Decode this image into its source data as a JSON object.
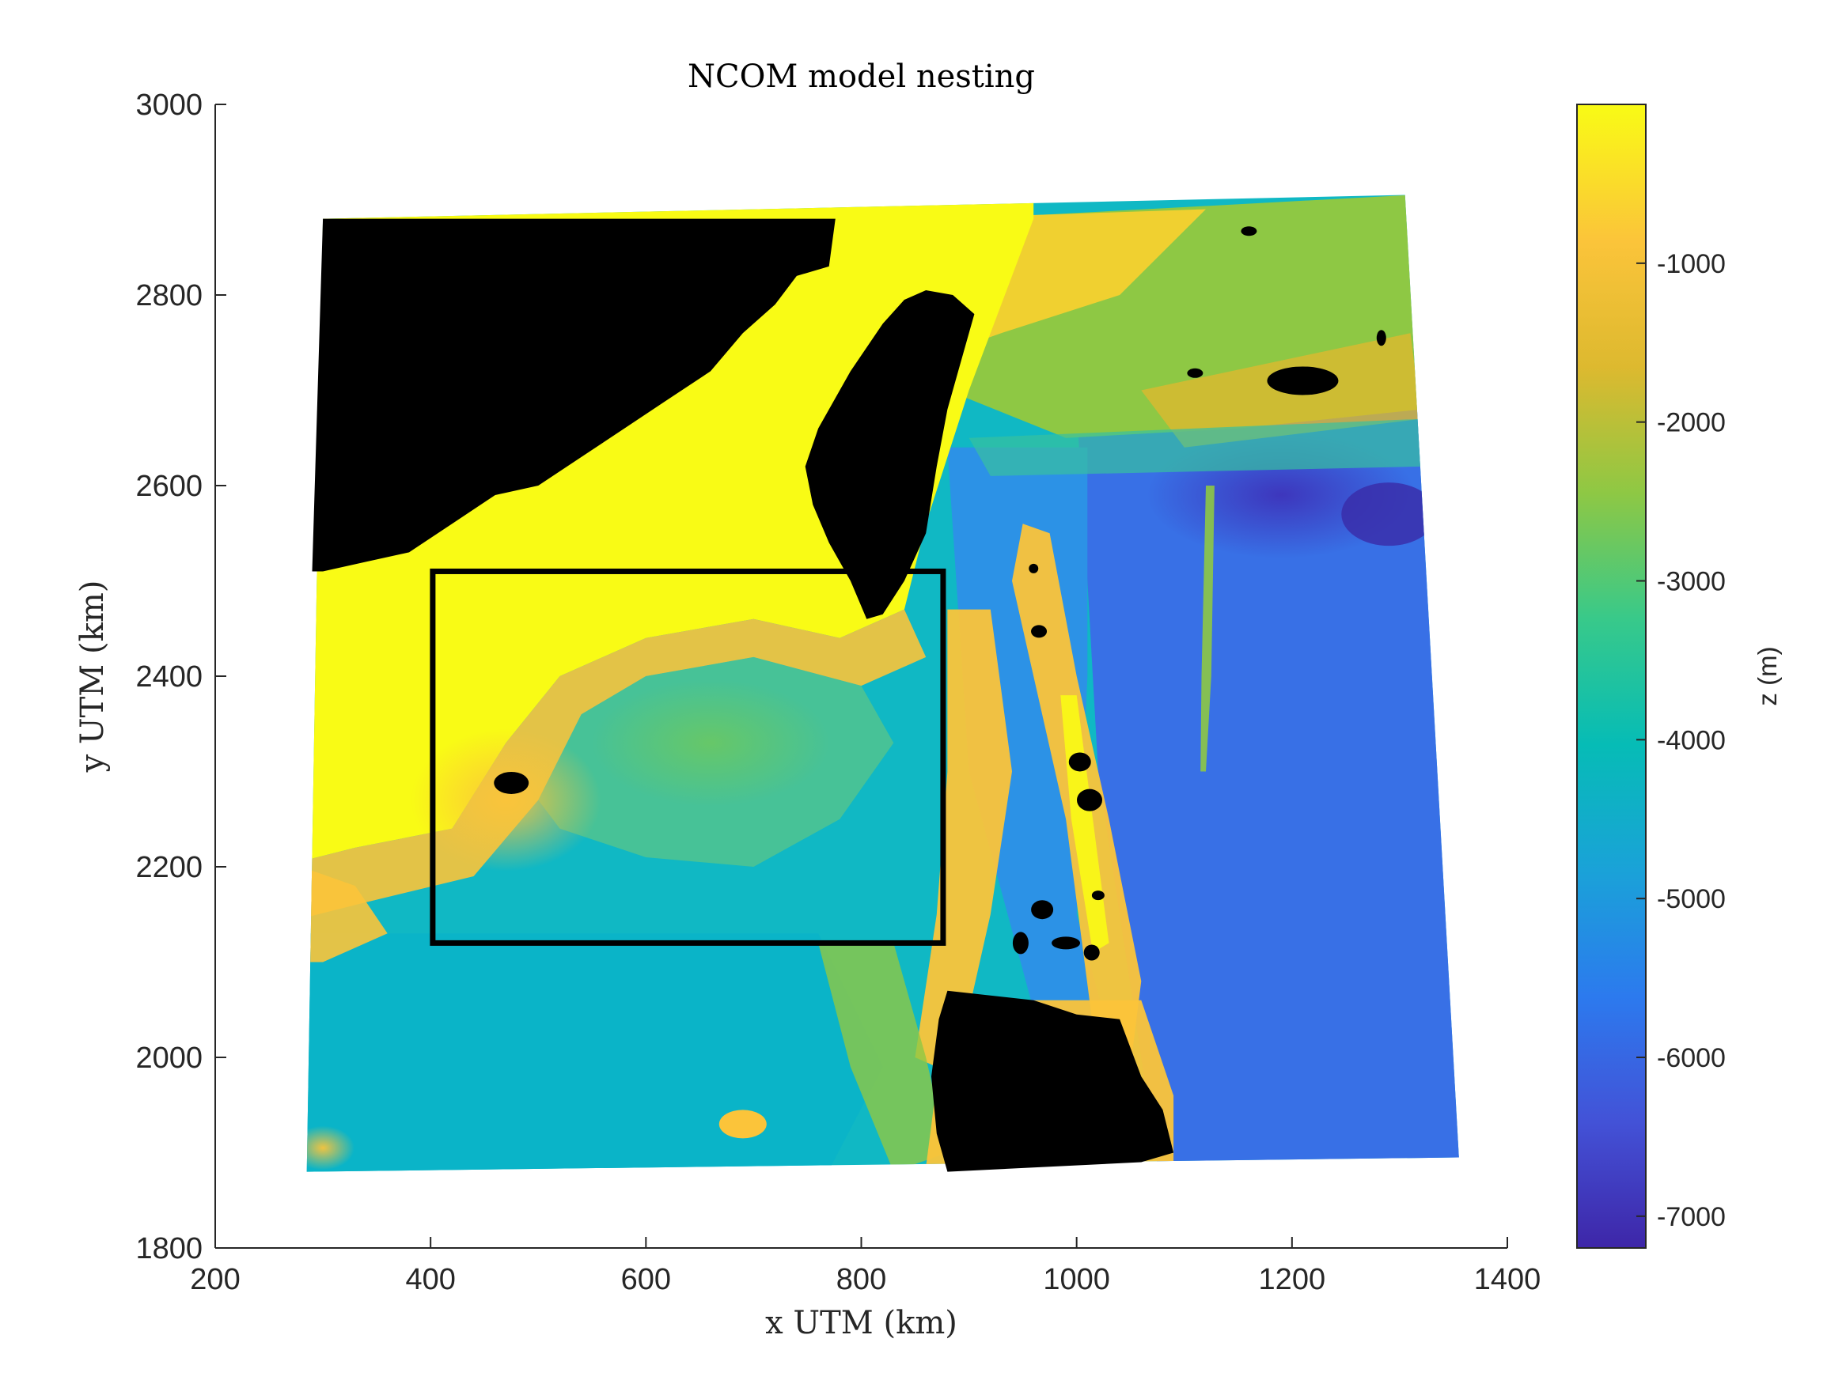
{
  "chart_data": {
    "type": "heatmap",
    "title": "NCOM model nesting",
    "xlabel": "x UTM (km)",
    "ylabel": "y UTM (km)",
    "xlim": [
      200,
      1400
    ],
    "ylim": [
      1800,
      3000
    ],
    "xticks": [
      200,
      400,
      600,
      800,
      1000,
      1200,
      1400
    ],
    "yticks": [
      1800,
      2000,
      2200,
      2400,
      2600,
      2800,
      3000
    ],
    "grid": false,
    "colorbar": {
      "label": "z (m)",
      "colormap": "parula",
      "range": [
        -7200,
        0
      ],
      "ticks": [
        -1000,
        -2000,
        -3000,
        -4000,
        -5000,
        -6000,
        -7000
      ]
    },
    "domain_corners_km": [
      [
        300,
        2880
      ],
      [
        1305,
        2905
      ],
      [
        1355,
        1895
      ],
      [
        285,
        1880
      ]
    ],
    "nested_box_km": {
      "x": [
        402,
        876
      ],
      "y": [
        2120,
        2510
      ]
    },
    "land_mask_color": "#000000",
    "colormap_stops": [
      "#3e26a8",
      "#4352d7",
      "#2c7aee",
      "#1aa2d8",
      "#06bcb6",
      "#38c98a",
      "#8ec844",
      "#ddb92f",
      "#fbc43a",
      "#f9fb15"
    ]
  }
}
